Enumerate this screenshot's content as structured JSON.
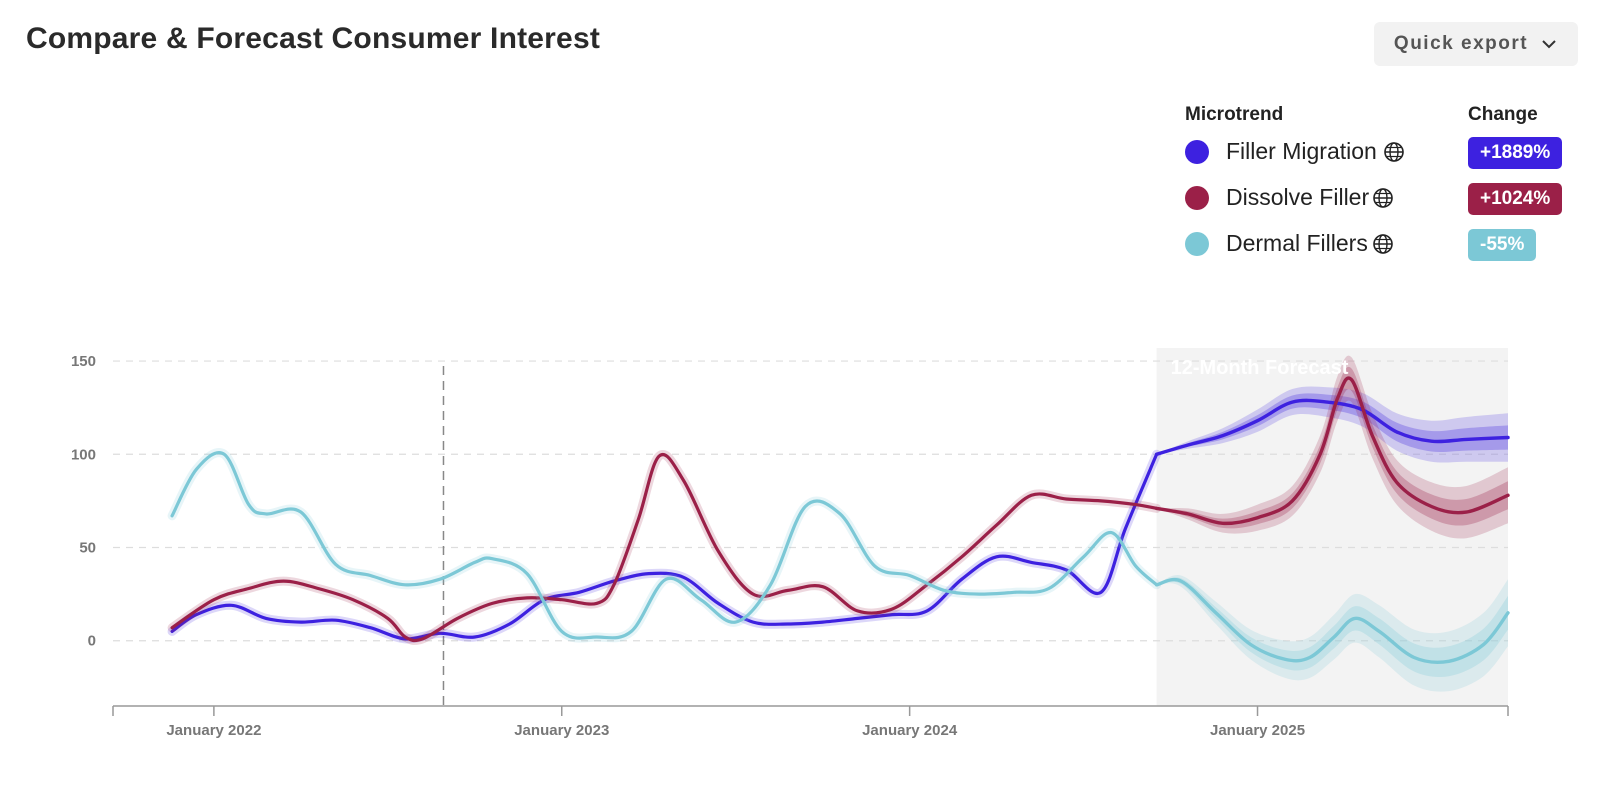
{
  "header": {
    "title": "Compare & Forecast Consumer Interest",
    "export_label": "Quick export"
  },
  "legend": {
    "microtrend_header": "Microtrend",
    "change_header": "Change",
    "items": [
      {
        "name": "Filler Migration",
        "change": "+1889%",
        "color": "#3d21e0"
      },
      {
        "name": "Dissolve Filler",
        "change": "+1024%",
        "color": "#9b2048"
      },
      {
        "name": "Dermal Fillers",
        "change": "-55%",
        "color": "#7cc8d6"
      }
    ]
  },
  "chart_data": {
    "type": "line",
    "forecast_label": "12-Month Forecast",
    "y_ticks": [
      150,
      100,
      50,
      0
    ],
    "ylim": [
      -35,
      157
    ],
    "x_ticks": [
      "January 2022",
      "January 2023",
      "January 2024",
      "January 2025"
    ],
    "xlim": [
      2021.71,
      2025.72
    ],
    "forecast_start": 2024.71,
    "marker_date": 2022.66,
    "grid": true,
    "series": [
      {
        "name": "Filler Migration",
        "color": "#3d21e0",
        "x": [
          2021.88,
          2021.95,
          2022.05,
          2022.15,
          2022.25,
          2022.35,
          2022.45,
          2022.55,
          2022.65,
          2022.75,
          2022.85,
          2022.95,
          2023.05,
          2023.15,
          2023.25,
          2023.35,
          2023.45,
          2023.55,
          2023.65,
          2023.75,
          2023.85,
          2023.95,
          2024.05,
          2024.15,
          2024.25,
          2024.35,
          2024.45,
          2024.55,
          2024.62,
          2024.71
        ],
        "y": [
          5,
          14,
          19,
          12,
          10,
          11,
          7,
          1,
          4,
          2,
          9,
          22,
          26,
          32,
          36,
          34,
          20,
          10,
          9,
          10,
          12,
          14,
          16,
          33,
          45,
          42,
          38,
          26,
          60,
          100
        ]
      },
      {
        "name": "Dissolve Filler",
        "color": "#9b2048",
        "x": [
          2021.88,
          2022.0,
          2022.1,
          2022.2,
          2022.3,
          2022.4,
          2022.5,
          2022.55,
          2022.6,
          2022.7,
          2022.8,
          2022.9,
          2023.0,
          2023.1,
          2023.15,
          2023.22,
          2023.28,
          2023.35,
          2023.45,
          2023.55,
          2023.65,
          2023.75,
          2023.85,
          2023.95,
          2024.05,
          2024.15,
          2024.25,
          2024.35,
          2024.45,
          2024.55,
          2024.65,
          2024.71
        ],
        "y": [
          7,
          22,
          28,
          32,
          28,
          22,
          12,
          2,
          1,
          12,
          20,
          23,
          22,
          20,
          30,
          65,
          99,
          86,
          48,
          25,
          27,
          29,
          16,
          17,
          30,
          45,
          62,
          78,
          76,
          75,
          73,
          71
        ]
      },
      {
        "name": "Dermal Fillers",
        "color": "#7cc8d6",
        "x": [
          2021.88,
          2021.95,
          2022.03,
          2022.1,
          2022.15,
          2022.25,
          2022.35,
          2022.45,
          2022.55,
          2022.65,
          2022.75,
          2022.8,
          2022.9,
          2023.0,
          2023.1,
          2023.2,
          2023.3,
          2023.4,
          2023.5,
          2023.6,
          2023.7,
          2023.8,
          2023.9,
          2024.0,
          2024.1,
          2024.2,
          2024.3,
          2024.4,
          2024.5,
          2024.58,
          2024.65,
          2024.71
        ],
        "y": [
          67,
          92,
          100,
          73,
          68,
          69,
          41,
          35,
          30,
          33,
          42,
          44,
          36,
          5,
          2,
          5,
          33,
          22,
          10,
          30,
          72,
          68,
          40,
          35,
          27,
          25,
          26,
          28,
          45,
          58,
          40,
          30
        ]
      }
    ],
    "forecast": [
      {
        "name": "Filler Migration",
        "color": "#3d21e0",
        "x": [
          2024.71,
          2024.8,
          2024.9,
          2025.0,
          2025.1,
          2025.2,
          2025.3,
          2025.4,
          2025.5,
          2025.6,
          2025.72
        ],
        "y": [
          100,
          105,
          110,
          118,
          128,
          128,
          124,
          112,
          107,
          108,
          109
        ],
        "spread": [
          0,
          2,
          4,
          6,
          7,
          8,
          9,
          10,
          11,
          12,
          13
        ]
      },
      {
        "name": "Dissolve Filler",
        "color": "#9b2048",
        "x": [
          2024.71,
          2024.8,
          2024.9,
          2025.0,
          2025.1,
          2025.18,
          2025.23,
          2025.27,
          2025.33,
          2025.4,
          2025.5,
          2025.6,
          2025.72
        ],
        "y": [
          71,
          68,
          63,
          66,
          75,
          100,
          130,
          140,
          110,
          85,
          72,
          69,
          78
        ],
        "spread": [
          0,
          3,
          5,
          7,
          8,
          10,
          12,
          12,
          12,
          12,
          13,
          14,
          15
        ]
      },
      {
        "name": "Dermal Fillers",
        "color": "#7cc8d6",
        "x": [
          2024.71,
          2024.78,
          2024.88,
          2024.98,
          2025.08,
          2025.15,
          2025.22,
          2025.28,
          2025.35,
          2025.45,
          2025.55,
          2025.65,
          2025.72
        ],
        "y": [
          30,
          32,
          15,
          -2,
          -10,
          -9,
          2,
          12,
          5,
          -9,
          -11,
          -2,
          15
        ],
        "spread": [
          0,
          3,
          6,
          8,
          10,
          11,
          12,
          13,
          14,
          15,
          16,
          17,
          18
        ]
      }
    ]
  }
}
